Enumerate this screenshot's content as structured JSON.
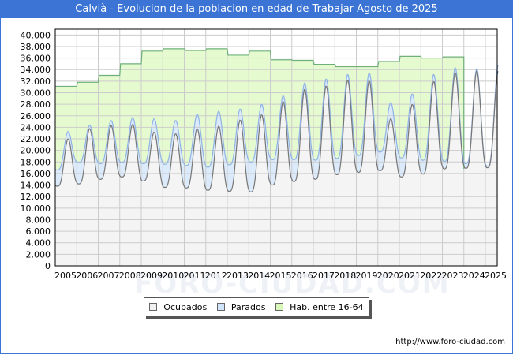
{
  "title": "Calvià - Evolucion de la poblacion en edad de Trabajar Agosto de 2025",
  "footer_url": "http://www.foro-ciudad.com",
  "watermark": "FORO-CIUDAD.COM",
  "legend": [
    {
      "label": "Ocupados",
      "color": "#f0f0f0"
    },
    {
      "label": "Parados",
      "color": "#cfe4fb"
    },
    {
      "label": "Hab. entre 16-64",
      "color": "#d8f7b8"
    }
  ],
  "colors": {
    "title_bg": "#3b74d4",
    "hab_fill": "#e6fad0",
    "hab_line": "#6fb07a",
    "parados_fill": "#dcebfb",
    "parados_line": "#8fb3e6",
    "ocupados_fill": "#f4f4f4",
    "ocupados_line": "#777777",
    "grid": "#cccccc"
  },
  "chart_data": {
    "type": "area",
    "title": "Calvià - Evolucion de la poblacion en edad de Trabajar Agosto de 2025",
    "xlabel": "",
    "ylabel": "",
    "ylim": [
      0,
      41000
    ],
    "yticks": [
      "0",
      "2.000",
      "4.000",
      "6.000",
      "8.000",
      "10.000",
      "12.000",
      "14.000",
      "16.000",
      "18.000",
      "20.000",
      "22.000",
      "24.000",
      "26.000",
      "28.000",
      "30.000",
      "32.000",
      "34.000",
      "36.000",
      "38.000",
      "40.000"
    ],
    "xticks": [
      "2005",
      "2006",
      "2007",
      "2008",
      "2009",
      "2010",
      "2011",
      "2012",
      "2013",
      "2014",
      "2015",
      "2016",
      "2017",
      "2018",
      "2019",
      "2020",
      "2021",
      "2022",
      "2023",
      "2024",
      "2025"
    ],
    "grid": true,
    "legend_position": "bottom",
    "hab_entre_16_64_by_year": {
      "years": [
        2005,
        2006,
        2007,
        2008,
        2009,
        2010,
        2011,
        2012,
        2013,
        2014,
        2015,
        2016,
        2017,
        2018,
        2019,
        2020,
        2021,
        2022,
        2023
      ],
      "values": [
        31100,
        31800,
        33000,
        35000,
        37200,
        37600,
        37300,
        37600,
        36500,
        37200,
        35700,
        35600,
        34900,
        34500,
        34500,
        35400,
        36300,
        36000,
        36200
      ]
    },
    "seasonal_series": {
      "years": [
        2005,
        2006,
        2007,
        2008,
        2009,
        2010,
        2011,
        2012,
        2013,
        2014,
        2015,
        2016,
        2017,
        2018,
        2019,
        2020,
        2021,
        2022,
        2023,
        2024,
        2025
      ],
      "ocupados_summer_peak": [
        22000,
        23800,
        24300,
        24500,
        23200,
        22900,
        23800,
        24200,
        25300,
        26200,
        28500,
        30600,
        31200,
        32200,
        32100,
        25500,
        28000,
        32000,
        33500,
        33800,
        33800
      ],
      "ocupados_winter_low": [
        13800,
        14200,
        15000,
        15400,
        14700,
        13600,
        13500,
        13100,
        12900,
        12800,
        14000,
        14600,
        15000,
        15800,
        16200,
        16500,
        15400,
        15900,
        16800,
        16900,
        17000
      ],
      "parados_summer_peak": [
        23300,
        24400,
        25200,
        25700,
        25500,
        25200,
        26300,
        26800,
        27200,
        28000,
        29500,
        31700,
        32400,
        33200,
        33500,
        28300,
        29800,
        33200,
        34400,
        34200,
        34800
      ],
      "parados_winter_high": [
        16600,
        17900,
        17700,
        17900,
        17700,
        17600,
        17400,
        17100,
        17500,
        18000,
        18400,
        18400,
        18300,
        18600,
        19100,
        19700,
        18700,
        18300,
        18100,
        17700,
        17300
      ]
    }
  }
}
